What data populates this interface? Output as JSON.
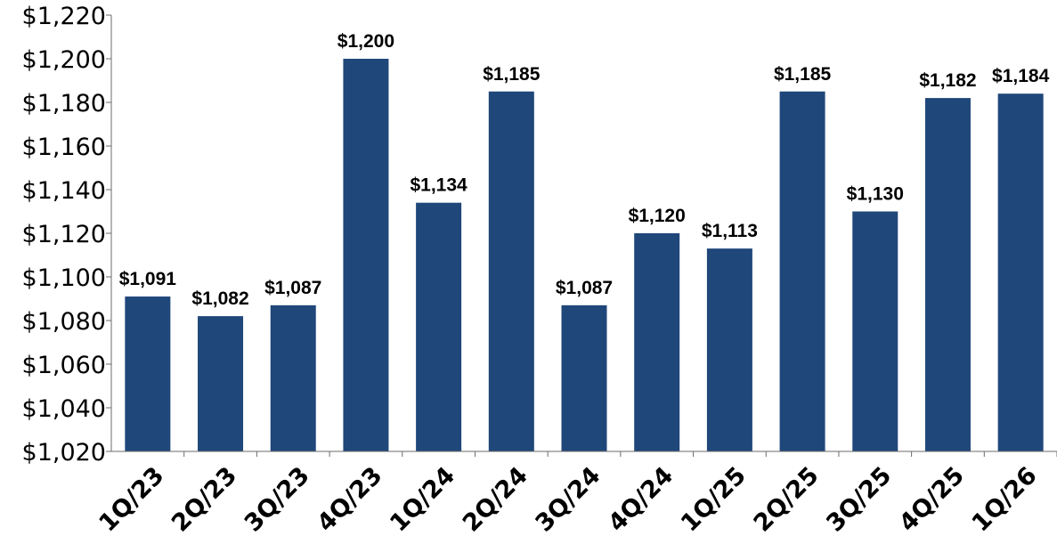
{
  "chart_data": {
    "type": "bar",
    "title": "",
    "xlabel": "",
    "ylabel": "",
    "ylim": [
      1020,
      1220
    ],
    "ytick_step": 20,
    "grid": false,
    "bar_color": "#1f477a",
    "categories": [
      "1Q/23",
      "2Q/23",
      "3Q/23",
      "4Q/23",
      "1Q/24",
      "2Q/24",
      "3Q/24",
      "4Q/24",
      "1Q/25",
      "2Q/25",
      "3Q/25",
      "4Q/25",
      "1Q/26"
    ],
    "values": [
      1091,
      1082,
      1087,
      1200,
      1134,
      1185,
      1087,
      1120,
      1113,
      1185,
      1130,
      1182,
      1184
    ],
    "value_labels": [
      "$1,091",
      "$1,082",
      "$1,087",
      "$1,200",
      "$1,134",
      "$1,185",
      "$1,087",
      "$1,120",
      "$1,113",
      "$1,185",
      "$1,130",
      "$1,182",
      "$1,184"
    ],
    "y_tick_labels": [
      "$1,020",
      "$1,040",
      "$1,060",
      "$1,080",
      "$1,100",
      "$1,120",
      "$1,140",
      "$1,160",
      "$1,180",
      "$1,200",
      "$1,220"
    ]
  }
}
